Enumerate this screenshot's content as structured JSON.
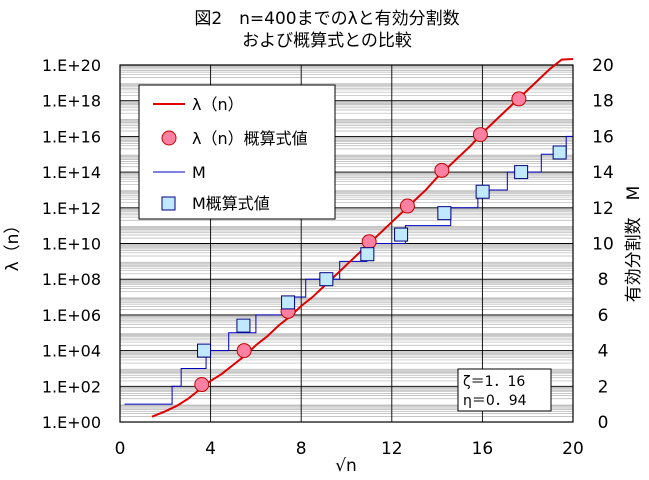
{
  "chart_data": {
    "type": "line",
    "title": [
      "図2　n=400までのλと有効分割数",
      "および概算式との比較"
    ],
    "xlabel": "√n",
    "ylabel_left": "λ（n）",
    "ylabel_right": "有効分割数　M",
    "xlim": [
      0,
      20
    ],
    "xticks": [
      "0",
      "4",
      "8",
      "12",
      "16",
      "20"
    ],
    "ylim_left_log10": [
      0,
      20
    ],
    "yticks_left": [
      "1.E+00",
      "1.E+02",
      "1.E+04",
      "1.E+06",
      "1.E+08",
      "1.E+10",
      "1.E+12",
      "1.E+14",
      "1.E+16",
      "1.E+18",
      "1.E+20"
    ],
    "ylim_right": [
      0,
      20
    ],
    "yticks_right": [
      "0",
      "2",
      "4",
      "6",
      "8",
      "10",
      "12",
      "14",
      "16",
      "18",
      "20"
    ],
    "grid": true,
    "legend_position": "top-left",
    "colors": {
      "lambda": "#e00000",
      "lambda_marker": "#ff80a0",
      "M": "#0000c0",
      "M_marker": "#c0e8ff"
    },
    "series": [
      {
        "name": "λ（n）",
        "axis": "left",
        "style": "line",
        "x": [
          1.41,
          2,
          2.5,
          3,
          3.5,
          4,
          4.5,
          5,
          5.5,
          6,
          6.5,
          7,
          7.5,
          8,
          8.5,
          9,
          9.5,
          10,
          10.5,
          11,
          11.5,
          12,
          12.5,
          13,
          13.5,
          14,
          14.5,
          15,
          15.5,
          16,
          16.5,
          17,
          17.5,
          18,
          18.5,
          19,
          19.5,
          20
        ],
        "y_log10": [
          0.3,
          0.6,
          0.9,
          1.3,
          1.8,
          2.3,
          2.7,
          3.2,
          3.7,
          4.3,
          4.8,
          5.4,
          5.9,
          6.5,
          7.0,
          7.6,
          8.2,
          8.8,
          9.4,
          10.0,
          10.6,
          11.2,
          11.8,
          12.4,
          13.0,
          13.7,
          14.3,
          14.9,
          15.5,
          16.2,
          16.8,
          17.4,
          18.0,
          18.6,
          19.2,
          19.8,
          20.3,
          20.8
        ]
      },
      {
        "name": "λ（n）概算式値",
        "axis": "left",
        "style": "marker-circle",
        "x": [
          3.61,
          5.48,
          7.42,
          11.0,
          12.69,
          14.21,
          15.91,
          17.61
        ],
        "y_log10": [
          2.1,
          4.0,
          6.2,
          10.1,
          12.1,
          14.1,
          16.1,
          18.1
        ]
      },
      {
        "name": "M",
        "axis": "right",
        "style": "step-line",
        "x": [
          0.2,
          1.2,
          2.3,
          2.7,
          3.3,
          3.8,
          4.3,
          4.8,
          5.5,
          6.0,
          6.7,
          7.2,
          7.6,
          8.2,
          8.8,
          9.2,
          9.7,
          10.2,
          10.9,
          11.4,
          12.0,
          12.6,
          13.2,
          14.0,
          14.6,
          15.2,
          15.8,
          16.4,
          17.1,
          17.9,
          18.6,
          19.2,
          19.7,
          20.0
        ],
        "y": [
          1,
          1,
          2,
          3,
          3,
          4,
          4,
          5,
          5,
          6,
          6,
          7,
          7,
          8,
          8,
          8,
          9,
          9,
          10,
          10,
          10,
          11,
          11,
          11,
          12,
          12,
          13,
          13,
          14,
          14,
          15,
          15,
          16,
          16
        ]
      },
      {
        "name": "M概算式値",
        "axis": "right",
        "style": "marker-square",
        "x": [
          3.71,
          5.45,
          7.42,
          9.11,
          10.92,
          12.41,
          14.32,
          16.01,
          17.71,
          19.41
        ],
        "y": [
          4,
          5.4,
          6.7,
          8.0,
          9.4,
          10.5,
          11.7,
          12.9,
          14.0,
          15.1
        ]
      }
    ],
    "annotation": [
      "ζ＝1．16",
      "η＝0．94"
    ]
  }
}
